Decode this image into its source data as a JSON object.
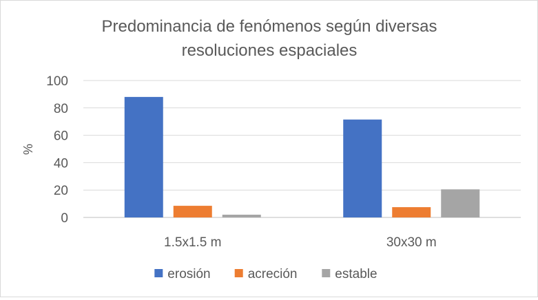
{
  "chart_data": {
    "type": "bar",
    "title_lines": [
      "Predominancia de fenómenos según diversas",
      "resoluciones espaciales"
    ],
    "xlabel": "",
    "ylabel": "%",
    "categories": [
      "1.5x1.5 m",
      "30x30 m"
    ],
    "series": [
      {
        "name": "erosión",
        "color": "#4472C4",
        "values": [
          88,
          71.5
        ]
      },
      {
        "name": "acreción",
        "color": "#ED7D31",
        "values": [
          8.5,
          7.5
        ]
      },
      {
        "name": "estable",
        "color": "#A5A5A5",
        "values": [
          2,
          20.5
        ]
      }
    ],
    "ylim": [
      0,
      100
    ],
    "yticks": [
      0,
      20,
      40,
      60,
      80,
      100
    ],
    "grid": true,
    "legend_position": "bottom"
  }
}
